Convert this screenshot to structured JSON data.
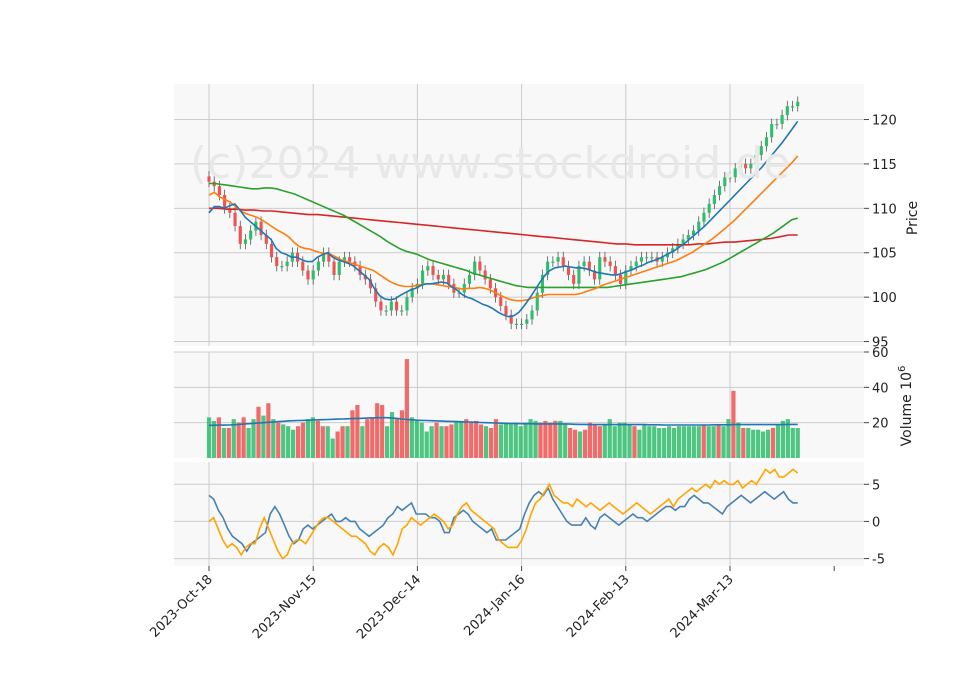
{
  "watermark": "(c)2024 www.stockdroid.de",
  "colors": {
    "up": "#2ebd6b",
    "down": "#f05252",
    "ma_fast": "#1f77b4",
    "ma_mid": "#ff7f0e",
    "ma_slow": "#2ca02c",
    "ma_long": "#d62728",
    "volume_ma": "#1f77b4",
    "osc_a": "#4682b4",
    "osc_b": "#ffa500",
    "panel_bg": "#f8f8f8",
    "grid": "#cccccc"
  },
  "chart_data": [
    {
      "panel": "price",
      "type": "candlestick",
      "ylabel": "Price",
      "ylim": [
        94.5,
        124
      ],
      "yticks": [
        95,
        100,
        105,
        110,
        115,
        120
      ],
      "x_start": "2023-10-18",
      "x_tick_labels": [
        "2023-Oct-18",
        "2023-Nov-15",
        "2023-Dec-14",
        "2024-Jan-16",
        "2024-Feb-13",
        "2024-Mar-13"
      ],
      "x_tick_positions": [
        0,
        20,
        40,
        60,
        80,
        100
      ],
      "close": [
        113,
        112.5,
        111.5,
        110,
        109.5,
        108,
        106,
        106.5,
        107.5,
        108.5,
        107,
        106,
        104.5,
        103.5,
        103.5,
        104,
        105,
        104,
        103,
        102,
        103,
        104,
        105,
        104,
        102.5,
        104,
        104.5,
        104,
        103.5,
        102.5,
        102,
        101,
        99.5,
        98.5,
        98.5,
        99.5,
        98.5,
        98.5,
        100,
        101,
        101.5,
        103,
        103.5,
        102.5,
        102,
        102.5,
        101.5,
        100.5,
        100.5,
        101.5,
        102.5,
        104,
        103,
        102,
        101,
        100,
        99,
        98,
        97,
        97,
        97,
        97.5,
        98.5,
        100.5,
        102.5,
        104,
        104,
        104.5,
        103.5,
        102.5,
        101.5,
        103.5,
        104,
        103,
        102,
        104.5,
        104,
        103.5,
        102.5,
        101.5,
        103,
        103.5,
        104,
        104.5,
        104.5,
        104.5,
        104,
        104.5,
        105,
        105.5,
        106,
        106.5,
        107,
        107.5,
        108.5,
        109.5,
        110.5,
        111.5,
        112.5,
        113.5,
        113.5,
        114.5,
        115,
        114.5,
        115,
        116,
        117,
        118,
        119.5,
        119.5,
        120.5,
        121.5,
        121.5,
        122
      ],
      "ma_fast": [
        109.5,
        110.2,
        110.2,
        110,
        110.3,
        110.5,
        109.8,
        109,
        108.5,
        108,
        107.5,
        107,
        106.5,
        105.5,
        105,
        104.8,
        104.5,
        104.5,
        104.2,
        104,
        104,
        104.5,
        104.8,
        105,
        104.5,
        104.2,
        104,
        103.8,
        103.5,
        103,
        102.5,
        102,
        101,
        100.2,
        99.8,
        99.7,
        99.8,
        100.2,
        100.5,
        100.8,
        101,
        101.3,
        101.5,
        101.5,
        101.6,
        101.7,
        101.6,
        101.2,
        100.8,
        100.3,
        100,
        99.8,
        99.5,
        99.2,
        99,
        98.7,
        98.3,
        98,
        97.8,
        97.9,
        98.3,
        99,
        99.8,
        100.7,
        101.6,
        102.4,
        103,
        103.3,
        103.4,
        103.5,
        103.4,
        103.3,
        103.3,
        103.2,
        103,
        102.8,
        102.7,
        102.6,
        102.5,
        102.5,
        102.7,
        102.9,
        103.1,
        103.4,
        103.6,
        103.9,
        104.1,
        104.3,
        104.6,
        104.9,
        105.2,
        105.6,
        106,
        106.5,
        107,
        107.5,
        108,
        108.6,
        109.2,
        109.8,
        110.4,
        111,
        111.6,
        112.2,
        112.8,
        113.4,
        114,
        114.6,
        115.3,
        116,
        116.7,
        117.4,
        118.2,
        119,
        119.8
      ],
      "ma_mid": [
        111.5,
        111.8,
        111.3,
        111,
        110.7,
        110.2,
        109.7,
        109.4,
        109.2,
        109,
        108.7,
        108.3,
        107.9,
        107.5,
        107.2,
        106.8,
        106.2,
        105.7,
        105.5,
        105.4,
        105.2,
        105,
        104.9,
        104.8,
        104.5,
        104.2,
        104,
        103.8,
        103.6,
        103.4,
        103.2,
        103,
        102.6,
        102.2,
        101.8,
        101.5,
        101.3,
        101.2,
        101.2,
        101.3,
        101.4,
        101.5,
        101.5,
        101.4,
        101.3,
        101.2,
        101.1,
        101,
        100.9,
        101,
        101,
        101.1,
        101,
        100.8,
        100.5,
        100.2,
        99.9,
        99.7,
        99.6,
        99.6,
        99.7,
        99.9,
        100.1,
        100.2,
        100.3,
        100.3,
        100.3,
        100.3,
        100.3,
        100.3,
        100.4,
        100.6,
        100.8,
        101,
        101.3,
        101.5,
        101.7,
        101.9,
        102.1,
        102.3,
        102.5,
        102.7,
        102.9,
        103.1,
        103.3,
        103.5,
        103.7,
        103.9,
        104.1,
        104.4,
        104.7,
        105,
        105.4,
        105.8,
        106.2,
        106.6,
        107.1,
        107.6,
        108.1,
        108.6,
        109.2,
        109.8,
        110.4,
        111,
        111.6,
        112.2,
        112.8,
        113.4,
        114,
        114.6,
        115.2,
        115.9
      ],
      "ma_slow": [
        112.8,
        112.8,
        112.7,
        112.6,
        112.5,
        112.4,
        112.3,
        112.2,
        112.2,
        112.3,
        112.3,
        112.2,
        112,
        111.8,
        111.6,
        111.3,
        111,
        110.7,
        110.4,
        110.1,
        109.8,
        109.5,
        109.2,
        108.8,
        108.4,
        108,
        107.6,
        107.2,
        106.8,
        106.3,
        105.9,
        105.5,
        105.2,
        105,
        104.8,
        104.5,
        104.2,
        104,
        103.8,
        103.6,
        103.4,
        103.2,
        103,
        102.7,
        102.5,
        102.3,
        102.1,
        101.9,
        101.7,
        101.5,
        101.3,
        101.2,
        101.1,
        101.1,
        101.1,
        101.1,
        101.1,
        101.1,
        101.1,
        101.1,
        101.1,
        101.1,
        101.1,
        101.1,
        101.1,
        101.1,
        101.2,
        101.3,
        101.4,
        101.5,
        101.6,
        101.7,
        101.8,
        101.9,
        102,
        102.1,
        102.2,
        102.3,
        102.5,
        102.7,
        102.9,
        103.1,
        103.4,
        103.7,
        104,
        104.4,
        104.8,
        105.2,
        105.6,
        106,
        106.4,
        106.8,
        107.2,
        107.7,
        108.2,
        108.7,
        108.9
      ],
      "ma_long": [
        110,
        110,
        109.9,
        109.9,
        109.8,
        109.8,
        109.7,
        109.7,
        109.6,
        109.5,
        109.4,
        109.3,
        109.3,
        109.2,
        109.1,
        109,
        108.9,
        108.8,
        108.7,
        108.6,
        108.5,
        108.4,
        108.3,
        108.2,
        108.1,
        108,
        107.9,
        107.8,
        107.7,
        107.6,
        107.5,
        107.4,
        107.3,
        107.2,
        107.1,
        107,
        106.9,
        106.8,
        106.7,
        106.6,
        106.5,
        106.4,
        106.3,
        106.2,
        106.1,
        106,
        106,
        105.9,
        105.9,
        105.9,
        105.9,
        105.9,
        105.9,
        105.9,
        106,
        106,
        106.1,
        106.2,
        106.2,
        106.3,
        106.4,
        106.5,
        106.6,
        106.8,
        107,
        107
      ]
    },
    {
      "panel": "volume",
      "type": "bar",
      "ylabel": "Volume  10",
      "ylabel_exponent": "6",
      "ylim": [
        0,
        60
      ],
      "yticks": [
        20,
        40,
        60
      ],
      "values": [
        23,
        21,
        23,
        17,
        17,
        22,
        20,
        23,
        17,
        22,
        29,
        24,
        31,
        22,
        20,
        19,
        18,
        16,
        18,
        20,
        22,
        23,
        21,
        18,
        18,
        11,
        15,
        18,
        18,
        27,
        30,
        18,
        22,
        23,
        31,
        30,
        18,
        26,
        22,
        27,
        56,
        23,
        21,
        20,
        15,
        18,
        20,
        18,
        18,
        19,
        21,
        21,
        22,
        20,
        21,
        19,
        18,
        17,
        22,
        19,
        20,
        19,
        20,
        18,
        20,
        22,
        21,
        20,
        21,
        20,
        21,
        21,
        19,
        17,
        16,
        15,
        16,
        20,
        19,
        18,
        19,
        22,
        18,
        20,
        20,
        19,
        18,
        16,
        19,
        18,
        18,
        17,
        17,
        18,
        17,
        18,
        18,
        18,
        18,
        18,
        19,
        18,
        18,
        19,
        18,
        22,
        38,
        20,
        17,
        17,
        16,
        16,
        15,
        16,
        17,
        19,
        21,
        22,
        17,
        17
      ],
      "up": [
        true,
        true,
        false,
        true,
        false,
        true,
        false,
        false,
        true,
        true,
        false,
        true,
        false,
        true,
        false,
        true,
        true,
        true,
        false,
        false,
        true,
        true,
        false,
        false,
        true,
        true,
        false,
        false,
        true,
        false,
        false,
        true,
        false,
        false,
        false,
        false,
        true,
        true,
        false,
        false,
        false,
        true,
        true,
        true,
        true,
        true,
        false,
        true,
        false,
        false,
        true,
        true,
        false,
        false,
        false,
        false,
        true,
        false,
        false,
        true,
        true,
        true,
        true,
        true,
        true,
        true,
        true,
        false,
        false,
        false,
        false,
        true,
        true,
        false,
        false,
        true,
        false,
        false,
        false,
        false,
        true,
        true,
        true,
        true,
        true,
        true,
        false,
        true,
        true,
        true,
        true,
        true,
        true,
        true,
        true,
        true,
        true,
        true,
        true,
        true,
        false,
        true,
        true,
        false,
        true,
        true,
        false,
        true,
        false,
        true,
        true,
        true,
        true,
        true,
        false,
        true,
        true,
        true,
        true,
        true
      ],
      "ma": [
        18.5,
        18.5,
        18.6,
        18.6,
        18.7,
        18.8,
        19,
        19.2,
        19.4,
        19.6,
        19.8,
        20,
        20.2,
        20.4,
        20.6,
        20.8,
        21,
        21.1,
        21.2,
        21.3,
        21.4,
        21.5,
        21.6,
        21.7,
        21.8,
        21.9,
        22,
        22.1,
        22.2,
        22.3,
        22.4,
        22.5,
        22.6,
        22.7,
        22.8,
        22.8,
        22.8,
        22.6,
        22.4,
        22.1,
        21.8,
        21.6,
        21.4,
        21.3,
        21.2,
        21.1,
        21,
        20.9,
        20.8,
        20.7,
        20.6,
        20.5,
        20.4,
        20.3,
        20.2,
        20.1,
        20,
        19.9,
        19.8,
        19.7,
        19.6,
        19.5,
        19.5,
        19.4,
        19.4,
        19.4,
        19.3,
        19.3,
        19.3,
        19.3,
        19.3,
        19.3,
        19.3,
        19.2,
        19.1,
        19,
        19,
        18.9,
        18.9,
        18.9,
        18.9,
        18.9,
        18.9,
        18.9,
        18.9,
        18.9,
        18.9,
        18.9,
        18.9,
        18.8,
        18.8,
        18.8,
        18.7,
        18.7,
        18.7,
        18.7,
        18.7,
        18.7,
        18.7,
        18.7,
        18.7,
        18.7,
        18.8,
        18.8,
        18.8,
        18.8,
        18.9,
        18.9,
        18.9,
        18.9,
        18.9,
        18.9,
        18.9,
        18.9,
        18.9,
        18.9,
        18.9,
        19,
        19,
        19
      ]
    },
    {
      "panel": "oscillator",
      "type": "line",
      "ylim": [
        -6,
        8
      ],
      "yticks": [
        -5,
        0,
        5
      ],
      "series_a": [
        3.5,
        3,
        1.5,
        0.5,
        -1,
        -2,
        -2.5,
        -3,
        -4,
        -3,
        -2.5,
        -2,
        -1.5,
        1,
        2,
        1,
        -0.5,
        -2,
        -3,
        -2.5,
        -1,
        -0.5,
        -1,
        -0.5,
        0,
        0.5,
        1,
        0,
        0,
        0.5,
        0,
        0,
        -1,
        -1.5,
        -2,
        -1.5,
        -1,
        -0.5,
        0.5,
        1,
        2,
        1.5,
        2,
        2.5,
        1,
        1,
        1,
        0.5,
        0.5,
        0,
        -1.5,
        -1.5,
        0.5,
        1,
        1.5,
        1,
        0,
        -0.5,
        -1,
        -1.5,
        -1,
        -2.5,
        -2.5,
        -2.5,
        -2,
        -1.5,
        -1,
        1,
        2.5,
        3.5,
        4,
        3.5,
        4.5,
        3,
        2,
        1,
        0,
        -0.5,
        -0.5,
        -0.5,
        0.5,
        -0.5,
        -1,
        0.5,
        1,
        0.5,
        0,
        -0.5,
        0,
        0.5,
        1,
        0.5,
        0.5,
        0,
        0.5,
        1,
        1.5,
        2,
        2,
        1.5,
        2,
        2,
        3,
        3.5,
        3,
        2.5,
        2.5,
        2,
        1.5,
        1,
        2,
        2.5,
        3,
        3.5,
        3,
        2.5,
        3,
        3.5,
        4,
        3.5,
        3,
        3.5,
        4,
        3,
        2.5,
        2.5
      ],
      "series_b": [
        0,
        0.5,
        -1,
        -2.5,
        -3.5,
        -3,
        -3.5,
        -4.5,
        -3.5,
        -3,
        -3,
        -1,
        0.5,
        -1,
        -2.5,
        -4,
        -5,
        -4.5,
        -3,
        -2.5,
        -2.5,
        -3,
        -2,
        -1,
        0,
        0.5,
        0.5,
        0,
        -0.5,
        -1,
        -1.5,
        -2,
        -2,
        -2.5,
        -3,
        -4,
        -4.5,
        -3.5,
        -3,
        -3.5,
        -4.5,
        -3,
        -1,
        -0.5,
        0.5,
        0,
        -0.5,
        0,
        0.5,
        1,
        0.5,
        0,
        -1,
        -0.5,
        1,
        2,
        2.5,
        1.5,
        1,
        0.5,
        0,
        -0.5,
        -1,
        -2.5,
        -3,
        -3.5,
        -3.5,
        -3.5,
        -2.5,
        -1,
        1,
        2.5,
        3,
        4,
        5,
        3.5,
        3,
        2.5,
        2.5,
        2,
        3,
        2.5,
        2,
        2.5,
        2,
        1.5,
        2,
        2.5,
        2,
        1.5,
        1,
        1.5,
        2,
        2.5,
        2,
        1.5,
        1,
        1.5,
        2,
        2.5,
        3,
        2,
        3,
        3.5,
        4,
        4.5,
        4,
        4.5,
        5,
        4.5,
        5.5,
        5,
        5.5,
        5,
        5,
        5.5,
        4.5,
        5,
        5.5,
        5,
        6,
        7,
        6.5,
        7,
        6,
        6,
        6.5,
        7,
        6.5
      ]
    }
  ]
}
